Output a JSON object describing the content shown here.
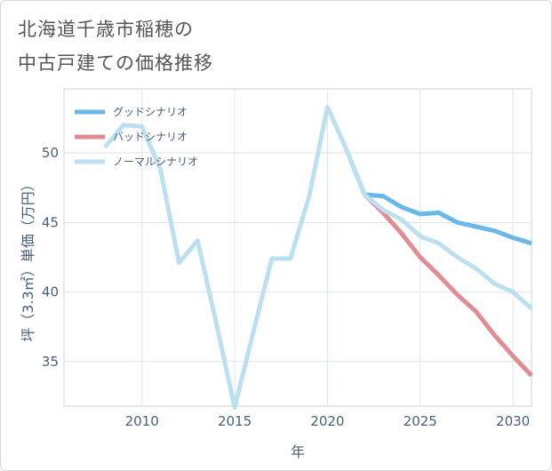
{
  "title_lines": [
    "北海道千歳市稲穂の",
    "中古戸建ての価格推移"
  ],
  "chart_data": {
    "type": "line",
    "xlabel": "年",
    "ylabel": "坪（3.3㎡）単価（万円）",
    "xlim": [
      2005.8,
      2031
    ],
    "ylim": [
      31.8,
      54.6
    ],
    "x_ticks": [
      "2010",
      "2015",
      "2020",
      "2025",
      "2030"
    ],
    "y_ticks": [
      "35",
      "40",
      "45",
      "50"
    ],
    "legend_position": "top-left",
    "series": [
      {
        "name": "グッドシナリオ",
        "color": "#6ab8e8",
        "x": [
          2021,
          2022,
          2023,
          2024,
          2025,
          2026,
          2027,
          2028,
          2029,
          2030,
          2031
        ],
        "values": [
          50.3,
          47.0,
          46.9,
          46.1,
          45.6,
          45.7,
          45.0,
          44.7,
          44.4,
          43.9,
          43.5
        ]
      },
      {
        "name": "バッドシナリオ",
        "color": "#e08c92",
        "x": [
          2021,
          2022,
          2023,
          2024,
          2025,
          2026,
          2027,
          2028,
          2029,
          2030,
          2031
        ],
        "values": [
          50.3,
          47.0,
          45.7,
          44.2,
          42.5,
          41.2,
          39.8,
          38.6,
          36.9,
          35.4,
          34.0
        ]
      },
      {
        "name": "ノーマルシナリオ",
        "color": "#bde0f0",
        "x": [
          2008,
          2009,
          2010,
          2011,
          2012,
          2013,
          2014,
          2015,
          2016,
          2017,
          2018,
          2019,
          2020,
          2021,
          2022,
          2023,
          2024,
          2025,
          2026,
          2027,
          2028,
          2029,
          2030,
          2031
        ],
        "values": [
          50.4,
          52.0,
          51.9,
          48.8,
          42.1,
          43.7,
          37.8,
          31.7,
          37.1,
          42.4,
          42.4,
          46.8,
          53.3,
          50.3,
          47.0,
          45.9,
          45.2,
          44.0,
          43.5,
          42.5,
          41.7,
          40.6,
          40.0,
          38.8
        ]
      }
    ]
  }
}
